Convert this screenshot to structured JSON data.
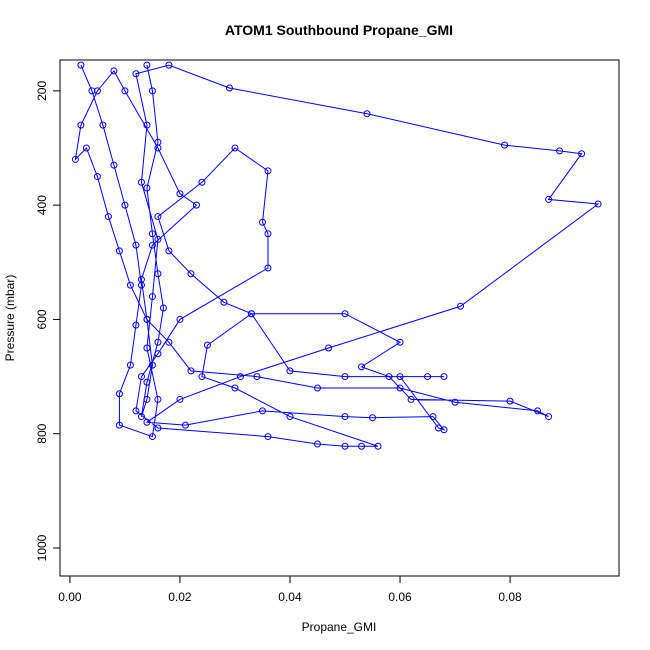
{
  "chart_data": {
    "type": "line",
    "title": "ATOM1 Southbound Propane_GMI",
    "x_label": "Propane_GMI",
    "y_label": "Pressure (mbar)",
    "color": "#0000ff",
    "markers": "open-circle",
    "xlim": [
      -0.0018,
      0.0998
    ],
    "ylim": [
      1049,
      146
    ],
    "xticks": [
      {
        "value": 0,
        "label": "0.00"
      },
      {
        "value": 0.02,
        "label": "0.02"
      },
      {
        "value": 0.04,
        "label": "0.04"
      },
      {
        "value": 0.06,
        "label": "0.06"
      },
      {
        "value": 0.08,
        "label": "0.08"
      }
    ],
    "yticks": [
      200,
      400,
      600,
      800,
      1000
    ],
    "x": [
      0.002,
      0.004,
      0.006,
      0.008,
      0.01,
      0.012,
      0.013,
      0.012,
      0.011,
      0.009,
      0.009,
      0.015,
      0.016,
      0.014,
      0.015,
      0.016,
      0.013,
      0.014,
      0.012,
      0.018,
      0.029,
      0.054,
      0.079,
      0.089,
      0.093,
      0.087,
      0.096,
      0.071,
      0.047,
      0.031,
      0.02,
      0.014,
      0.021,
      0.035,
      0.05,
      0.055,
      0.066,
      0.068,
      0.067,
      0.06,
      0.065,
      0.068,
      0.05,
      0.04,
      0.033,
      0.028,
      0.022,
      0.018,
      0.016,
      0.024,
      0.03,
      0.036,
      0.035,
      0.036,
      0.036,
      0.02,
      0.016,
      0.013,
      0.012,
      0.016,
      0.036,
      0.045,
      0.05,
      0.053,
      0.056,
      0.04,
      0.03,
      0.024,
      0.025,
      0.033,
      0.05,
      0.06,
      0.053,
      0.058,
      0.062,
      0.08,
      0.087,
      0.085,
      0.07,
      0.06,
      0.045,
      0.034,
      0.022,
      0.018,
      0.014,
      0.011,
      0.009,
      0.007,
      0.005,
      0.003,
      0.001,
      0.002,
      0.005,
      0.008,
      0.01,
      0.016,
      0.02,
      0.023,
      0.015,
      0.013,
      0.014,
      0.015,
      0.014,
      0.013,
      0.014,
      0.016,
      0.017,
      0.016,
      0.015,
      0.014,
      0.016,
      0.015,
      0.014
    ],
    "values": [
      155,
      200,
      260,
      330,
      400,
      470,
      540,
      610,
      680,
      730,
      785,
      805,
      740,
      650,
      560,
      460,
      360,
      260,
      170,
      155,
      195,
      240,
      295,
      305,
      310,
      390,
      398,
      577,
      650,
      700,
      740,
      780,
      785,
      760,
      770,
      772,
      770,
      793,
      790,
      700,
      700,
      700,
      700,
      690,
      590,
      570,
      520,
      480,
      420,
      360,
      300,
      340,
      430,
      450,
      510,
      600,
      660,
      700,
      760,
      790,
      805,
      818,
      822,
      822,
      822,
      770,
      720,
      700,
      645,
      590,
      590,
      640,
      683,
      700,
      740,
      743,
      770,
      760,
      745,
      720,
      720,
      700,
      690,
      640,
      600,
      540,
      480,
      420,
      350,
      300,
      320,
      260,
      200,
      165,
      200,
      300,
      380,
      400,
      470,
      530,
      600,
      680,
      740,
      770,
      710,
      640,
      580,
      520,
      450,
      370,
      290,
      200,
      155
    ]
  }
}
